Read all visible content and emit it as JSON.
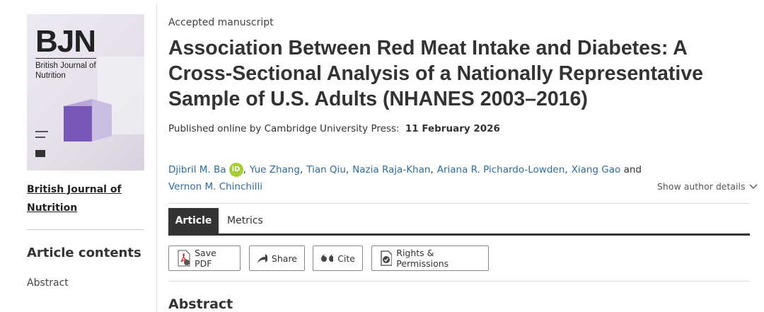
{
  "cover": {
    "acronym": "BJN",
    "journal": "British Journal of Nutrition"
  },
  "sidebar": {
    "journal_link": "British Journal of Nutrition",
    "contents_heading": "Article contents",
    "contents": [
      "Abstract"
    ]
  },
  "article": {
    "status": "Accepted manuscript",
    "title": "Association Between Red Meat Intake and Diabetes: A Cross-Sectional Analysis of a Nationally Representative Sample of U.S. Adults (NHANES 2003–2016)",
    "published_label": "Published online by Cambridge University Press:",
    "published_date": "11 February 2026",
    "authors": {
      "names": [
        "Djibril M. Ba",
        "Yue Zhang",
        "Tian Qiu",
        "Nazia Raja-Khan",
        "Ariana R. Pichardo-Lowden",
        "Xiang Gao",
        "Vernon M. Chinchilli"
      ],
      "separator": ",",
      "conjunction": "and",
      "orcid": "iD"
    },
    "show_author_details": "Show author details",
    "tabs": [
      "Article",
      "Metrics"
    ],
    "buttons": [
      "Save PDF",
      "Share",
      "Cite",
      "Rights & Permissions"
    ],
    "section_heading": "Abstract"
  }
}
